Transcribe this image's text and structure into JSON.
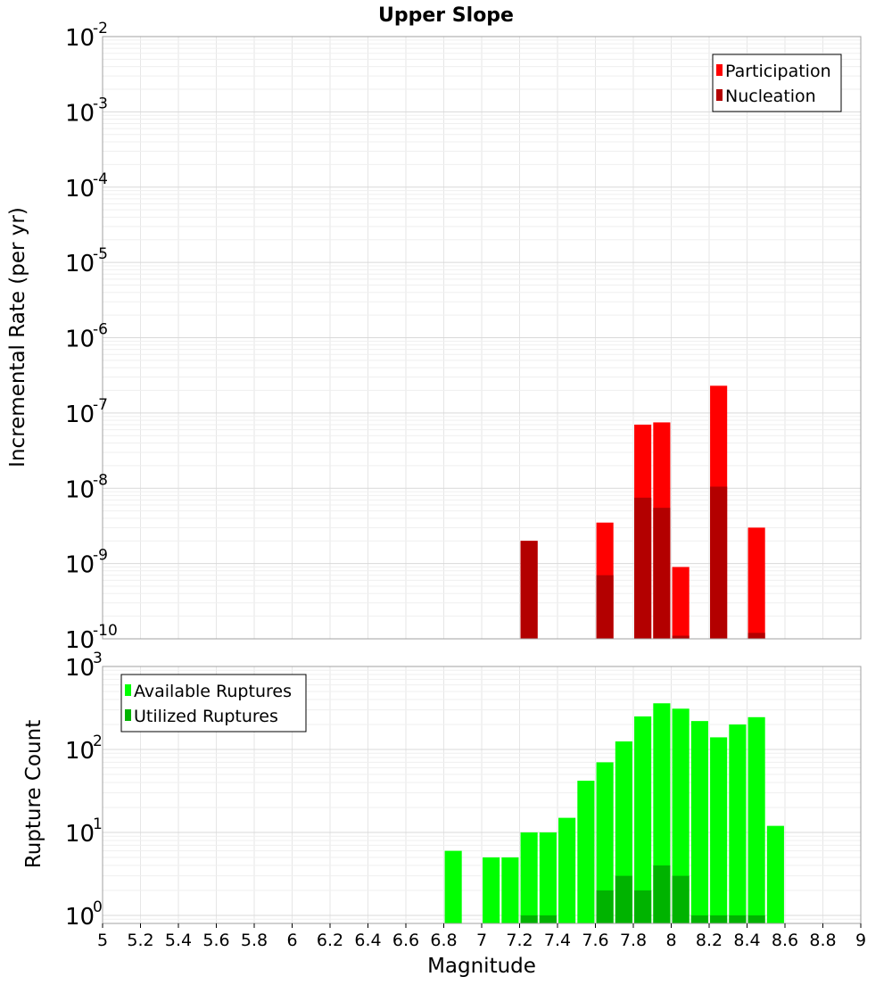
{
  "chart_data": [
    {
      "type": "bar",
      "title": "Upper Slope",
      "xlabel": "",
      "ylabel": "Incremental Rate (per yr)",
      "yscale": "log",
      "ylim": [
        1e-10,
        0.01
      ],
      "xlim": [
        5,
        9
      ],
      "legend_position": "top-right",
      "series": [
        {
          "name": "Participation",
          "color": "#ff0000",
          "x": [
            7.25,
            7.65,
            7.85,
            7.95,
            8.05,
            8.25,
            8.45
          ],
          "values": [
            2e-09,
            3.5e-09,
            7e-08,
            7.5e-08,
            9e-10,
            2.3e-07,
            3e-09
          ]
        },
        {
          "name": "Nucleation",
          "color": "#b30000",
          "x": [
            7.25,
            7.65,
            7.85,
            7.95,
            8.05,
            8.25,
            8.45
          ],
          "values": [
            2e-09,
            7e-10,
            7.5e-09,
            5.5e-09,
            1.1e-10,
            1.05e-08,
            1.2e-10
          ]
        }
      ],
      "bar_width": 0.09
    },
    {
      "type": "bar",
      "title": "",
      "xlabel": "Magnitude",
      "ylabel": "Rupture Count",
      "yscale": "log",
      "ylim": [
        0.8,
        1000
      ],
      "xlim": [
        5,
        9
      ],
      "xticks": [
        "5",
        "5.2",
        "5.4",
        "5.6",
        "5.8",
        "6",
        "6.2",
        "6.4",
        "6.6",
        "6.8",
        "7",
        "7.2",
        "7.4",
        "7.6",
        "7.8",
        "8",
        "8.2",
        "8.4",
        "8.6",
        "8.8",
        "9"
      ],
      "legend_position": "top-left",
      "series": [
        {
          "name": "Available Ruptures",
          "color": "#00ff00",
          "x": [
            6.85,
            7.05,
            7.15,
            7.25,
            7.35,
            7.45,
            7.55,
            7.65,
            7.75,
            7.85,
            7.95,
            8.05,
            8.15,
            8.25,
            8.35,
            8.45,
            8.55
          ],
          "values": [
            6,
            5,
            5,
            10,
            10,
            15,
            42,
            70,
            125,
            250,
            360,
            310,
            220,
            140,
            200,
            245,
            12
          ]
        },
        {
          "name": "Utilized Ruptures",
          "color": "#00b300",
          "x": [
            7.25,
            7.35,
            7.65,
            7.75,
            7.85,
            7.95,
            8.05,
            8.15,
            8.25,
            8.35,
            8.45
          ],
          "values": [
            1,
            1,
            2,
            3,
            2,
            4,
            3,
            1,
            1,
            1,
            1
          ]
        }
      ],
      "bar_width": 0.09
    }
  ]
}
